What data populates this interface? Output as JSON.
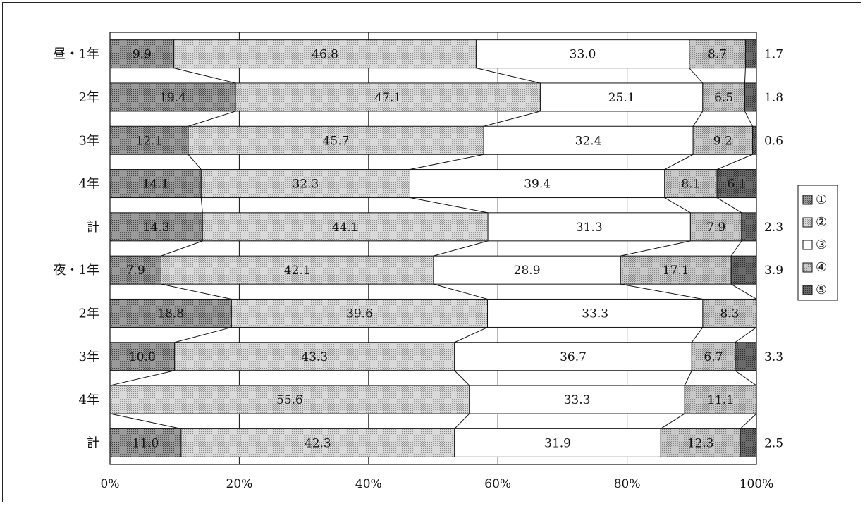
{
  "chart_data": {
    "type": "bar",
    "orientation": "horizontal",
    "stacked": "percent",
    "categories": [
      "昼・1年",
      "2年",
      "3年",
      "4年",
      "計",
      "夜・1年",
      "2年",
      "3年",
      "4年",
      "計"
    ],
    "series": [
      {
        "name": "①",
        "values": [
          9.9,
          19.4,
          12.1,
          14.1,
          14.3,
          7.9,
          18.8,
          10.0,
          0,
          11.0
        ],
        "labels": [
          "9.9",
          "19.4",
          "12.1",
          "14.1",
          "14.3",
          "7.9",
          "18.8",
          "10.0",
          "",
          "11.0"
        ],
        "label_pos": [
          "in",
          "in",
          "in",
          "in",
          "in",
          "in",
          "in",
          "in",
          "in",
          "in"
        ],
        "color": "#808080"
      },
      {
        "name": "②",
        "values": [
          46.8,
          47.1,
          45.7,
          32.3,
          44.1,
          42.1,
          39.6,
          43.3,
          55.6,
          42.3
        ],
        "labels": [
          "46.8",
          "47.1",
          "45.7",
          "32.3",
          "44.1",
          "42.1",
          "39.6",
          "43.3",
          "55.6",
          "42.3"
        ],
        "label_pos": [
          "in",
          "in",
          "in",
          "in",
          "in",
          "in",
          "in",
          "in",
          "in",
          "in"
        ],
        "color": "#cfcfcf"
      },
      {
        "name": "③",
        "values": [
          33.0,
          25.1,
          32.4,
          39.4,
          31.3,
          28.9,
          33.3,
          36.7,
          33.3,
          31.9
        ],
        "labels": [
          "33.0",
          "25.1",
          "32.4",
          "39.4",
          "31.3",
          "28.9",
          "33.3",
          "36.7",
          "33.3",
          "31.9"
        ],
        "label_pos": [
          "in",
          "in",
          "in",
          "in",
          "in",
          "in",
          "in",
          "in",
          "in",
          "in"
        ],
        "color": "#ffffff"
      },
      {
        "name": "④",
        "values": [
          8.7,
          6.5,
          9.2,
          8.1,
          7.9,
          17.1,
          8.3,
          6.7,
          11.1,
          12.3
        ],
        "labels": [
          "8.7",
          "6.5",
          "9.2",
          "8.1",
          "7.9",
          "17.1",
          "8.3",
          "6.7",
          "11.1",
          "12.3"
        ],
        "label_pos": [
          "in",
          "in",
          "in",
          "in",
          "in",
          "in",
          "in",
          "in",
          "in",
          "in"
        ],
        "color": "#b8b8b8"
      },
      {
        "name": "⑤",
        "values": [
          1.7,
          1.8,
          0.6,
          6.1,
          2.3,
          3.9,
          0,
          3.3,
          0,
          2.5
        ],
        "labels": [
          "1.7",
          "1.8",
          "0.6",
          "6.1",
          "2.3",
          "3.9",
          "",
          "3.3",
          "",
          "2.5"
        ],
        "label_pos": [
          "out",
          "out",
          "out",
          "in",
          "out",
          "out",
          "out",
          "out",
          "out",
          "out"
        ],
        "color": "#5a5a5a"
      }
    ],
    "x_ticks": [
      "0%",
      "20%",
      "40%",
      "60%",
      "80%",
      "100%"
    ],
    "xlim": [
      0,
      100
    ],
    "grid": true,
    "legend_position": "right",
    "title": "",
    "xlabel": "",
    "ylabel": ""
  }
}
